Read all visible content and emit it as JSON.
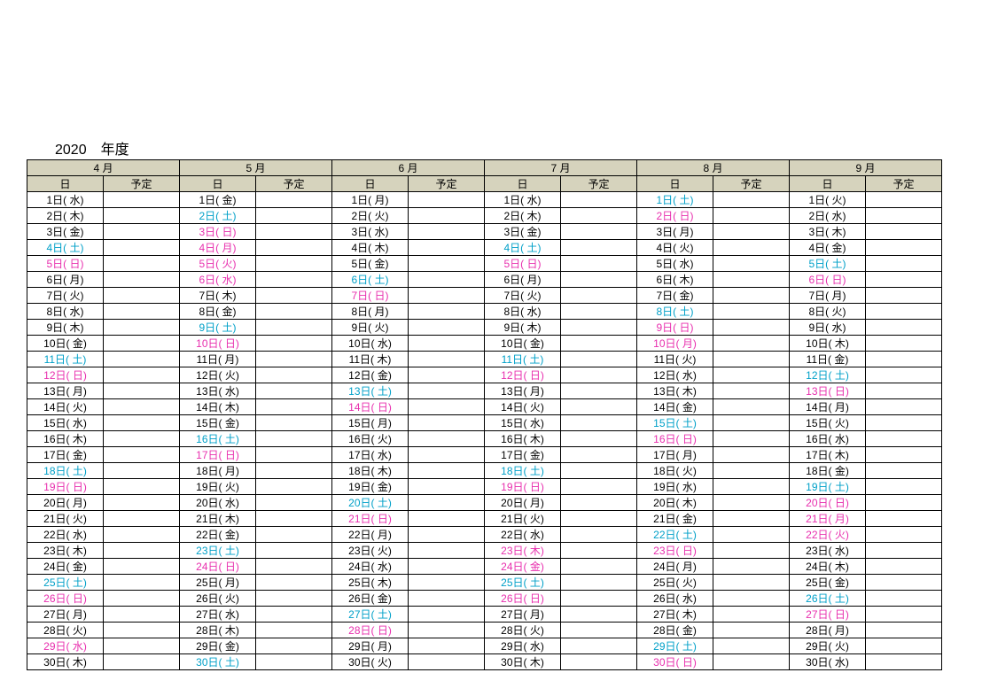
{
  "title": "2020　年度",
  "colors": {
    "black": "#000000",
    "saturday": "#00a0c8",
    "sunday_holiday": "#e82fae",
    "header_bg": "#d6d3bd"
  },
  "sub_headers": {
    "day": "日",
    "plan": "予定"
  },
  "months": [
    {
      "label": "4 月",
      "days": [
        {
          "t": "1日( 水)",
          "c": "black"
        },
        {
          "t": "2日( 木)",
          "c": "black"
        },
        {
          "t": "3日( 金)",
          "c": "black"
        },
        {
          "t": "4日( 土)",
          "c": "blue"
        },
        {
          "t": "5日( 日)",
          "c": "pink"
        },
        {
          "t": "6日( 月)",
          "c": "black"
        },
        {
          "t": "7日( 火)",
          "c": "black"
        },
        {
          "t": "8日( 水)",
          "c": "black"
        },
        {
          "t": "9日( 木)",
          "c": "black"
        },
        {
          "t": "10日( 金)",
          "c": "black"
        },
        {
          "t": "11日( 土)",
          "c": "blue"
        },
        {
          "t": "12日( 日)",
          "c": "pink"
        },
        {
          "t": "13日( 月)",
          "c": "black"
        },
        {
          "t": "14日( 火)",
          "c": "black"
        },
        {
          "t": "15日( 水)",
          "c": "black"
        },
        {
          "t": "16日( 木)",
          "c": "black"
        },
        {
          "t": "17日( 金)",
          "c": "black"
        },
        {
          "t": "18日( 土)",
          "c": "blue"
        },
        {
          "t": "19日( 日)",
          "c": "pink"
        },
        {
          "t": "20日( 月)",
          "c": "black"
        },
        {
          "t": "21日( 火)",
          "c": "black"
        },
        {
          "t": "22日( 水)",
          "c": "black"
        },
        {
          "t": "23日( 木)",
          "c": "black"
        },
        {
          "t": "24日( 金)",
          "c": "black"
        },
        {
          "t": "25日( 土)",
          "c": "blue"
        },
        {
          "t": "26日( 日)",
          "c": "pink"
        },
        {
          "t": "27日( 月)",
          "c": "black"
        },
        {
          "t": "28日( 火)",
          "c": "black"
        },
        {
          "t": "29日( 水)",
          "c": "pink"
        },
        {
          "t": "30日( 木)",
          "c": "black"
        }
      ]
    },
    {
      "label": "5 月",
      "days": [
        {
          "t": "1日( 金)",
          "c": "black"
        },
        {
          "t": "2日( 土)",
          "c": "blue"
        },
        {
          "t": "3日( 日)",
          "c": "pink"
        },
        {
          "t": "4日( 月)",
          "c": "pink"
        },
        {
          "t": "5日( 火)",
          "c": "pink"
        },
        {
          "t": "6日( 水)",
          "c": "pink"
        },
        {
          "t": "7日( 木)",
          "c": "black"
        },
        {
          "t": "8日( 金)",
          "c": "black"
        },
        {
          "t": "9日( 土)",
          "c": "blue"
        },
        {
          "t": "10日( 日)",
          "c": "pink"
        },
        {
          "t": "11日( 月)",
          "c": "black"
        },
        {
          "t": "12日( 火)",
          "c": "black"
        },
        {
          "t": "13日( 水)",
          "c": "black"
        },
        {
          "t": "14日( 木)",
          "c": "black"
        },
        {
          "t": "15日( 金)",
          "c": "black"
        },
        {
          "t": "16日( 土)",
          "c": "blue"
        },
        {
          "t": "17日( 日)",
          "c": "pink"
        },
        {
          "t": "18日( 月)",
          "c": "black"
        },
        {
          "t": "19日( 火)",
          "c": "black"
        },
        {
          "t": "20日( 水)",
          "c": "black"
        },
        {
          "t": "21日( 木)",
          "c": "black"
        },
        {
          "t": "22日( 金)",
          "c": "black"
        },
        {
          "t": "23日( 土)",
          "c": "blue"
        },
        {
          "t": "24日( 日)",
          "c": "pink"
        },
        {
          "t": "25日( 月)",
          "c": "black"
        },
        {
          "t": "26日( 火)",
          "c": "black"
        },
        {
          "t": "27日( 水)",
          "c": "black"
        },
        {
          "t": "28日( 木)",
          "c": "black"
        },
        {
          "t": "29日( 金)",
          "c": "black"
        },
        {
          "t": "30日( 土)",
          "c": "blue"
        }
      ]
    },
    {
      "label": "6 月",
      "days": [
        {
          "t": "1日( 月)",
          "c": "black"
        },
        {
          "t": "2日( 火)",
          "c": "black"
        },
        {
          "t": "3日( 水)",
          "c": "black"
        },
        {
          "t": "4日( 木)",
          "c": "black"
        },
        {
          "t": "5日( 金)",
          "c": "black"
        },
        {
          "t": "6日( 土)",
          "c": "blue"
        },
        {
          "t": "7日( 日)",
          "c": "pink"
        },
        {
          "t": "8日( 月)",
          "c": "black"
        },
        {
          "t": "9日( 火)",
          "c": "black"
        },
        {
          "t": "10日( 水)",
          "c": "black"
        },
        {
          "t": "11日( 木)",
          "c": "black"
        },
        {
          "t": "12日( 金)",
          "c": "black"
        },
        {
          "t": "13日( 土)",
          "c": "blue"
        },
        {
          "t": "14日( 日)",
          "c": "pink"
        },
        {
          "t": "15日( 月)",
          "c": "black"
        },
        {
          "t": "16日( 火)",
          "c": "black"
        },
        {
          "t": "17日( 水)",
          "c": "black"
        },
        {
          "t": "18日( 木)",
          "c": "black"
        },
        {
          "t": "19日( 金)",
          "c": "black"
        },
        {
          "t": "20日( 土)",
          "c": "blue"
        },
        {
          "t": "21日( 日)",
          "c": "pink"
        },
        {
          "t": "22日( 月)",
          "c": "black"
        },
        {
          "t": "23日( 火)",
          "c": "black"
        },
        {
          "t": "24日( 水)",
          "c": "black"
        },
        {
          "t": "25日( 木)",
          "c": "black"
        },
        {
          "t": "26日( 金)",
          "c": "black"
        },
        {
          "t": "27日( 土)",
          "c": "blue"
        },
        {
          "t": "28日( 日)",
          "c": "pink"
        },
        {
          "t": "29日( 月)",
          "c": "black"
        },
        {
          "t": "30日( 火)",
          "c": "black"
        }
      ]
    },
    {
      "label": "7 月",
      "days": [
        {
          "t": "1日( 水)",
          "c": "black"
        },
        {
          "t": "2日( 木)",
          "c": "black"
        },
        {
          "t": "3日( 金)",
          "c": "black"
        },
        {
          "t": "4日( 土)",
          "c": "blue"
        },
        {
          "t": "5日( 日)",
          "c": "pink"
        },
        {
          "t": "6日( 月)",
          "c": "black"
        },
        {
          "t": "7日( 火)",
          "c": "black"
        },
        {
          "t": "8日( 水)",
          "c": "black"
        },
        {
          "t": "9日( 木)",
          "c": "black"
        },
        {
          "t": "10日( 金)",
          "c": "black"
        },
        {
          "t": "11日( 土)",
          "c": "blue"
        },
        {
          "t": "12日( 日)",
          "c": "pink"
        },
        {
          "t": "13日( 月)",
          "c": "black"
        },
        {
          "t": "14日( 火)",
          "c": "black"
        },
        {
          "t": "15日( 水)",
          "c": "black"
        },
        {
          "t": "16日( 木)",
          "c": "black"
        },
        {
          "t": "17日( 金)",
          "c": "black"
        },
        {
          "t": "18日( 土)",
          "c": "blue"
        },
        {
          "t": "19日( 日)",
          "c": "pink"
        },
        {
          "t": "20日( 月)",
          "c": "black"
        },
        {
          "t": "21日( 火)",
          "c": "black"
        },
        {
          "t": "22日( 水)",
          "c": "black"
        },
        {
          "t": "23日( 木)",
          "c": "pink"
        },
        {
          "t": "24日( 金)",
          "c": "pink"
        },
        {
          "t": "25日( 土)",
          "c": "blue"
        },
        {
          "t": "26日( 日)",
          "c": "pink"
        },
        {
          "t": "27日( 月)",
          "c": "black"
        },
        {
          "t": "28日( 火)",
          "c": "black"
        },
        {
          "t": "29日( 水)",
          "c": "black"
        },
        {
          "t": "30日( 木)",
          "c": "black"
        }
      ]
    },
    {
      "label": "8 月",
      "days": [
        {
          "t": "1日( 土)",
          "c": "blue"
        },
        {
          "t": "2日( 日)",
          "c": "pink"
        },
        {
          "t": "3日( 月)",
          "c": "black"
        },
        {
          "t": "4日( 火)",
          "c": "black"
        },
        {
          "t": "5日( 水)",
          "c": "black"
        },
        {
          "t": "6日( 木)",
          "c": "black"
        },
        {
          "t": "7日( 金)",
          "c": "black"
        },
        {
          "t": "8日( 土)",
          "c": "blue"
        },
        {
          "t": "9日( 日)",
          "c": "pink"
        },
        {
          "t": "10日( 月)",
          "c": "pink"
        },
        {
          "t": "11日( 火)",
          "c": "black"
        },
        {
          "t": "12日( 水)",
          "c": "black"
        },
        {
          "t": "13日( 木)",
          "c": "black"
        },
        {
          "t": "14日( 金)",
          "c": "black"
        },
        {
          "t": "15日( 土)",
          "c": "blue"
        },
        {
          "t": "16日( 日)",
          "c": "pink"
        },
        {
          "t": "17日( 月)",
          "c": "black"
        },
        {
          "t": "18日( 火)",
          "c": "black"
        },
        {
          "t": "19日( 水)",
          "c": "black"
        },
        {
          "t": "20日( 木)",
          "c": "black"
        },
        {
          "t": "21日( 金)",
          "c": "black"
        },
        {
          "t": "22日( 土)",
          "c": "blue"
        },
        {
          "t": "23日( 日)",
          "c": "pink"
        },
        {
          "t": "24日( 月)",
          "c": "black"
        },
        {
          "t": "25日( 火)",
          "c": "black"
        },
        {
          "t": "26日( 水)",
          "c": "black"
        },
        {
          "t": "27日( 木)",
          "c": "black"
        },
        {
          "t": "28日( 金)",
          "c": "black"
        },
        {
          "t": "29日( 土)",
          "c": "blue"
        },
        {
          "t": "30日( 日)",
          "c": "pink"
        }
      ]
    },
    {
      "label": "9 月",
      "days": [
        {
          "t": "1日( 火)",
          "c": "black"
        },
        {
          "t": "2日( 水)",
          "c": "black"
        },
        {
          "t": "3日( 木)",
          "c": "black"
        },
        {
          "t": "4日( 金)",
          "c": "black"
        },
        {
          "t": "5日( 土)",
          "c": "blue"
        },
        {
          "t": "6日( 日)",
          "c": "pink"
        },
        {
          "t": "7日( 月)",
          "c": "black"
        },
        {
          "t": "8日( 火)",
          "c": "black"
        },
        {
          "t": "9日( 水)",
          "c": "black"
        },
        {
          "t": "10日( 木)",
          "c": "black"
        },
        {
          "t": "11日( 金)",
          "c": "black"
        },
        {
          "t": "12日( 土)",
          "c": "blue"
        },
        {
          "t": "13日( 日)",
          "c": "pink"
        },
        {
          "t": "14日( 月)",
          "c": "black"
        },
        {
          "t": "15日( 火)",
          "c": "black"
        },
        {
          "t": "16日( 水)",
          "c": "black"
        },
        {
          "t": "17日( 木)",
          "c": "black"
        },
        {
          "t": "18日( 金)",
          "c": "black"
        },
        {
          "t": "19日( 土)",
          "c": "blue"
        },
        {
          "t": "20日( 日)",
          "c": "pink"
        },
        {
          "t": "21日( 月)",
          "c": "pink"
        },
        {
          "t": "22日( 火)",
          "c": "pink"
        },
        {
          "t": "23日( 水)",
          "c": "black"
        },
        {
          "t": "24日( 木)",
          "c": "black"
        },
        {
          "t": "25日( 金)",
          "c": "black"
        },
        {
          "t": "26日( 土)",
          "c": "blue"
        },
        {
          "t": "27日( 日)",
          "c": "pink"
        },
        {
          "t": "28日( 月)",
          "c": "black"
        },
        {
          "t": "29日( 火)",
          "c": "black"
        },
        {
          "t": "30日( 水)",
          "c": "black"
        }
      ]
    }
  ]
}
